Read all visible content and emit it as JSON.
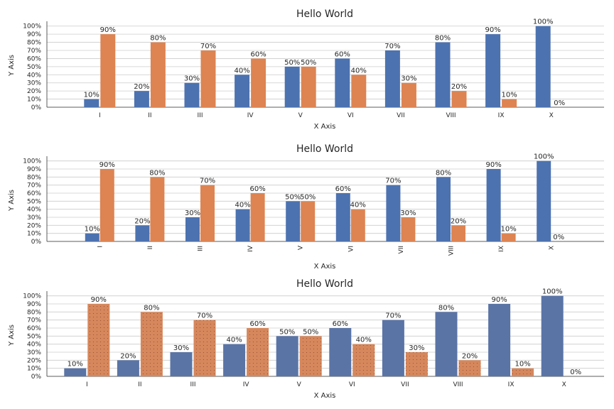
{
  "colors": {
    "series_a": "#4c72b0",
    "series_b": "#dd8452",
    "series_a_alt": "#5a74a6",
    "series_b_alt": "#d6875c",
    "grid": "#cccccc",
    "text": "#262626"
  },
  "chart_data": [
    {
      "type": "bar",
      "title": "Hello World",
      "xlabel": "X Axis",
      "ylabel": "Y Axis",
      "ylim": [
        0,
        1.05
      ],
      "yticks": [
        "0%",
        "10%",
        "20%",
        "30%",
        "40%",
        "50%",
        "60%",
        "70%",
        "80%",
        "90%",
        "100%"
      ],
      "categories": [
        "I",
        "II",
        "III",
        "IV",
        "V",
        "VI",
        "VII",
        "VIII",
        "IX",
        "X"
      ],
      "xtick_rotation": 0,
      "hatch": false,
      "grid": true,
      "series": [
        {
          "values": [
            0.1,
            0.2,
            0.3,
            0.4,
            0.5,
            0.6,
            0.7,
            0.8,
            0.9,
            1.0
          ],
          "labels": [
            "10%",
            "20%",
            "30%",
            "40%",
            "50%",
            "60%",
            "70%",
            "80%",
            "90%",
            "100%"
          ]
        },
        {
          "values": [
            0.9,
            0.8,
            0.7,
            0.6,
            0.5,
            0.4,
            0.3,
            0.2,
            0.1,
            0.0
          ],
          "labels": [
            "90%",
            "80%",
            "70%",
            "60%",
            "50%",
            "40%",
            "30%",
            "20%",
            "10%",
            "0%"
          ]
        }
      ]
    },
    {
      "type": "bar",
      "title": "Hello World",
      "xlabel": "X Axis",
      "ylabel": "Y Axis",
      "ylim": [
        0,
        1.05
      ],
      "yticks": [
        "0%",
        "10%",
        "20%",
        "30%",
        "40%",
        "50%",
        "60%",
        "70%",
        "80%",
        "90%",
        "100%"
      ],
      "categories": [
        "I",
        "II",
        "III",
        "IV",
        "V",
        "VI",
        "VII",
        "VIII",
        "IX",
        "X"
      ],
      "xtick_rotation": 90,
      "hatch": false,
      "grid": true,
      "series": [
        {
          "values": [
            0.1,
            0.2,
            0.3,
            0.4,
            0.5,
            0.6,
            0.7,
            0.8,
            0.9,
            1.0
          ],
          "labels": [
            "10%",
            "20%",
            "30%",
            "40%",
            "50%",
            "60%",
            "70%",
            "80%",
            "90%",
            "100%"
          ]
        },
        {
          "values": [
            0.9,
            0.8,
            0.7,
            0.6,
            0.5,
            0.4,
            0.3,
            0.2,
            0.1,
            0.0
          ],
          "labels": [
            "90%",
            "80%",
            "70%",
            "60%",
            "50%",
            "40%",
            "30%",
            "20%",
            "10%",
            "0%"
          ]
        }
      ]
    },
    {
      "type": "bar",
      "title": "Hello World",
      "xlabel": "X Axis",
      "ylabel": "Y Axis",
      "ylim": [
        0,
        1.05
      ],
      "yticks": [
        "0%",
        "10%",
        "20%",
        "30%",
        "40%",
        "50%",
        "60%",
        "70%",
        "80%",
        "90%",
        "100%"
      ],
      "categories": [
        "I",
        "II",
        "III",
        "IV",
        "V",
        "VI",
        "VII",
        "VIII",
        "IX",
        "X"
      ],
      "xtick_rotation": 0,
      "hatch": true,
      "grid": true,
      "series": [
        {
          "values": [
            0.1,
            0.2,
            0.3,
            0.4,
            0.5,
            0.6,
            0.7,
            0.8,
            0.9,
            1.0
          ],
          "labels": [
            "10%",
            "20%",
            "30%",
            "40%",
            "50%",
            "60%",
            "70%",
            "80%",
            "90%",
            "100%"
          ]
        },
        {
          "values": [
            0.9,
            0.8,
            0.7,
            0.6,
            0.5,
            0.4,
            0.3,
            0.2,
            0.1,
            0.0
          ],
          "labels": [
            "90%",
            "80%",
            "70%",
            "60%",
            "50%",
            "40%",
            "30%",
            "20%",
            "10%",
            "0%"
          ]
        }
      ]
    }
  ]
}
